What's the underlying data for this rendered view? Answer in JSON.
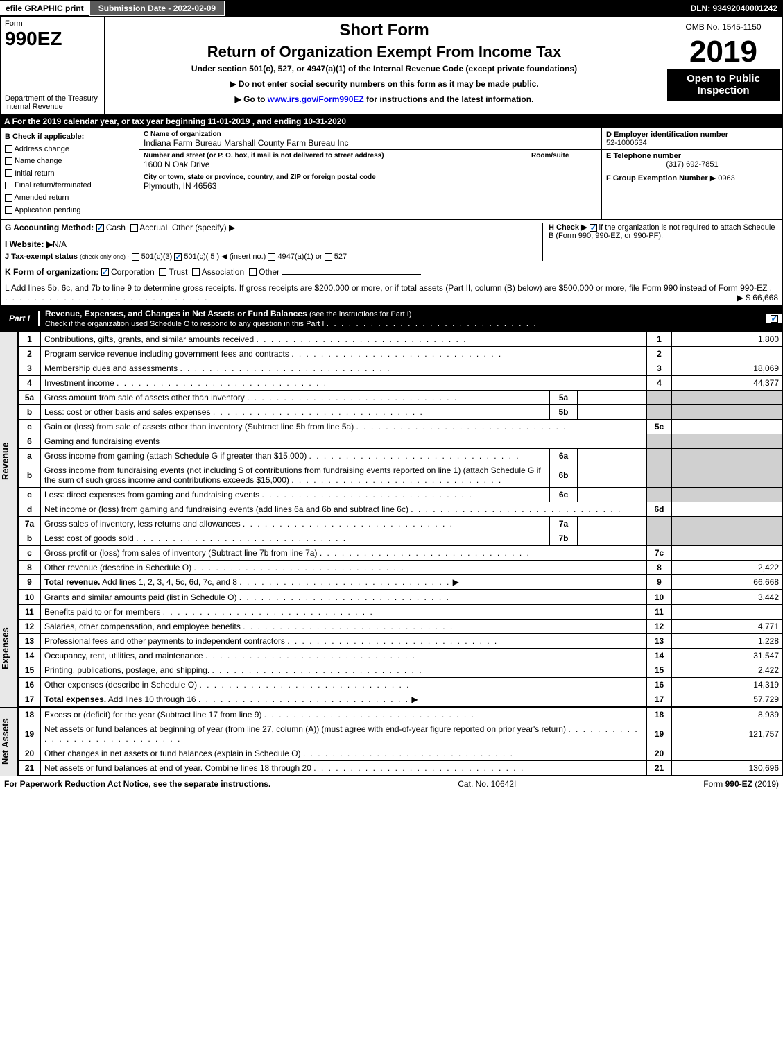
{
  "top_bar": {
    "efile": "efile GRAPHIC print",
    "submission": "Submission Date - 2022-02-09",
    "dln": "DLN: 93492040001242"
  },
  "header": {
    "form_label": "Form",
    "form_number": "990EZ",
    "dept1": "Department of the Treasury",
    "dept2": "Internal Revenue",
    "short_form": "Short Form",
    "main_title": "Return of Organization Exempt From Income Tax",
    "subtitle": "Under section 501(c), 527, or 4947(a)(1) of the Internal Revenue Code (except private foundations)",
    "instruction1": "▶ Do not enter social security numbers on this form as it may be made public.",
    "instruction2_pre": "▶ Go to ",
    "instruction2_link": "www.irs.gov/Form990EZ",
    "instruction2_post": " for instructions and the latest information.",
    "omb": "OMB No. 1545-1150",
    "year": "2019",
    "open": "Open to Public Inspection"
  },
  "section_a": "A For the 2019 calendar year, or tax year beginning 11-01-2019 , and ending 10-31-2020",
  "b_block": {
    "title": "B Check if applicable:",
    "opts": [
      "Address change",
      "Name change",
      "Initial return",
      "Final return/terminated",
      "Amended return",
      "Application pending"
    ]
  },
  "c_block": {
    "label": "C Name of organization",
    "name": "Indiana Farm Bureau Marshall County Farm Bureau Inc",
    "addr_label": "Number and street (or P. O. box, if mail is not delivered to street address)",
    "room_label": "Room/suite",
    "addr": "1600 N Oak Drive",
    "city_label": "City or town, state or province, country, and ZIP or foreign postal code",
    "city": "Plymouth, IN  46563"
  },
  "d_block": {
    "d_label": "D Employer identification number",
    "ein": "52-1000634",
    "e_label": "E Telephone number",
    "phone": "(317) 692-7851",
    "f_label": "F Group Exemption Number",
    "f_val": "▶ 0963"
  },
  "g_block": {
    "g_label": "G Accounting Method:",
    "g_cash": "Cash",
    "g_accrual": "Accrual",
    "g_other": "Other (specify) ▶",
    "i_label": "I Website: ▶",
    "i_val": "N/A",
    "j_label": "J Tax-exempt status",
    "j_sub": "(check only one) -",
    "j_501c3": "501(c)(3)",
    "j_501c": "501(c)( 5 ) ◀ (insert no.)",
    "j_4947": "4947(a)(1) or",
    "j_527": "527",
    "h_label": "H Check ▶",
    "h_text": "if the organization is not required to attach Schedule B (Form 990, 990-EZ, or 990-PF)."
  },
  "k_block": {
    "label": "K Form of organization:",
    "corp": "Corporation",
    "trust": "Trust",
    "assoc": "Association",
    "other": "Other"
  },
  "l_block": {
    "text": "L Add lines 5b, 6c, and 7b to line 9 to determine gross receipts. If gross receipts are $200,000 or more, or if total assets (Part II, column (B) below) are $500,000 or more, file Form 990 instead of Form 990-EZ",
    "amount": "▶ $ 66,668"
  },
  "part1": {
    "label": "Part I",
    "title": "Revenue, Expenses, and Changes in Net Assets or Fund Balances",
    "sub": "(see the instructions for Part I)",
    "check": "Check if the organization used Schedule O to respond to any question in this Part I"
  },
  "sections": {
    "revenue": "Revenue",
    "expenses": "Expenses",
    "netassets": "Net Assets"
  },
  "lines": [
    {
      "n": "1",
      "d": "Contributions, gifts, grants, and similar amounts received",
      "rn": "1",
      "amt": "1,800"
    },
    {
      "n": "2",
      "d": "Program service revenue including government fees and contracts",
      "rn": "2",
      "amt": ""
    },
    {
      "n": "3",
      "d": "Membership dues and assessments",
      "rn": "3",
      "amt": "18,069"
    },
    {
      "n": "4",
      "d": "Investment income",
      "rn": "4",
      "amt": "44,377"
    },
    {
      "n": "5a",
      "d": "Gross amount from sale of assets other than inventory",
      "sn": "5a",
      "sv": "",
      "shade": true
    },
    {
      "n": "b",
      "d": "Less: cost or other basis and sales expenses",
      "sn": "5b",
      "sv": "",
      "shade": true
    },
    {
      "n": "c",
      "d": "Gain or (loss) from sale of assets other than inventory (Subtract line 5b from line 5a)",
      "rn": "5c",
      "amt": ""
    },
    {
      "n": "6",
      "d": "Gaming and fundraising events",
      "shade": true,
      "noright": true
    },
    {
      "n": "a",
      "d": "Gross income from gaming (attach Schedule G if greater than $15,000)",
      "sn": "6a",
      "sv": "",
      "shade": true
    },
    {
      "n": "b",
      "d": "Gross income from fundraising events (not including $                    of contributions from fundraising events reported on line 1) (attach Schedule G if the sum of such gross income and contributions exceeds $15,000)",
      "sn": "6b",
      "sv": "",
      "shade": true
    },
    {
      "n": "c",
      "d": "Less: direct expenses from gaming and fundraising events",
      "sn": "6c",
      "sv": "",
      "shade": true
    },
    {
      "n": "d",
      "d": "Net income or (loss) from gaming and fundraising events (add lines 6a and 6b and subtract line 6c)",
      "rn": "6d",
      "amt": ""
    },
    {
      "n": "7a",
      "d": "Gross sales of inventory, less returns and allowances",
      "sn": "7a",
      "sv": "",
      "shade": true
    },
    {
      "n": "b",
      "d": "Less: cost of goods sold",
      "sn": "7b",
      "sv": "",
      "shade": true
    },
    {
      "n": "c",
      "d": "Gross profit or (loss) from sales of inventory (Subtract line 7b from line 7a)",
      "rn": "7c",
      "amt": ""
    },
    {
      "n": "8",
      "d": "Other revenue (describe in Schedule O)",
      "rn": "8",
      "amt": "2,422"
    },
    {
      "n": "9",
      "d": "Total revenue. Add lines 1, 2, 3, 4, 5c, 6d, 7c, and 8",
      "rn": "9",
      "amt": "66,668",
      "bold": true,
      "arrow": true
    }
  ],
  "expense_lines": [
    {
      "n": "10",
      "d": "Grants and similar amounts paid (list in Schedule O)",
      "rn": "10",
      "amt": "3,442"
    },
    {
      "n": "11",
      "d": "Benefits paid to or for members",
      "rn": "11",
      "amt": ""
    },
    {
      "n": "12",
      "d": "Salaries, other compensation, and employee benefits",
      "rn": "12",
      "amt": "4,771"
    },
    {
      "n": "13",
      "d": "Professional fees and other payments to independent contractors",
      "rn": "13",
      "amt": "1,228"
    },
    {
      "n": "14",
      "d": "Occupancy, rent, utilities, and maintenance",
      "rn": "14",
      "amt": "31,547"
    },
    {
      "n": "15",
      "d": "Printing, publications, postage, and shipping.",
      "rn": "15",
      "amt": "2,422"
    },
    {
      "n": "16",
      "d": "Other expenses (describe in Schedule O)",
      "rn": "16",
      "amt": "14,319"
    },
    {
      "n": "17",
      "d": "Total expenses. Add lines 10 through 16",
      "rn": "17",
      "amt": "57,729",
      "bold": true,
      "arrow": true
    }
  ],
  "netasset_lines": [
    {
      "n": "18",
      "d": "Excess or (deficit) for the year (Subtract line 17 from line 9)",
      "rn": "18",
      "amt": "8,939"
    },
    {
      "n": "19",
      "d": "Net assets or fund balances at beginning of year (from line 27, column (A)) (must agree with end-of-year figure reported on prior year's return)",
      "rn": "19",
      "amt": "121,757"
    },
    {
      "n": "20",
      "d": "Other changes in net assets or fund balances (explain in Schedule O)",
      "rn": "20",
      "amt": ""
    },
    {
      "n": "21",
      "d": "Net assets or fund balances at end of year. Combine lines 18 through 20",
      "rn": "21",
      "amt": "130,696"
    }
  ],
  "footer": {
    "left": "For Paperwork Reduction Act Notice, see the separate instructions.",
    "center": "Cat. No. 10642I",
    "right": "Form 990-EZ (2019)"
  }
}
